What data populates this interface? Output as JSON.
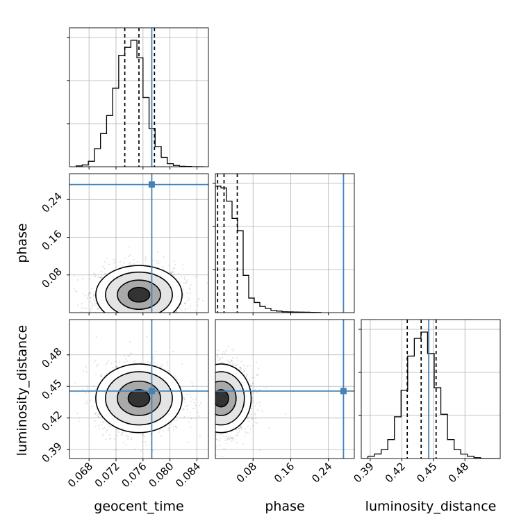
{
  "chart_data": {
    "type": "corner",
    "parameters": [
      "geocent_time",
      "phase",
      "luminosity_distance"
    ],
    "injection": {
      "geocent_time": 0.0773,
      "phase": 0.272,
      "luminosity_distance": 0.4456,
      "color": "#4682b4"
    },
    "axes": {
      "geocent_time": {
        "label": "geocent_time",
        "range": [
          0.0651,
          0.0857
        ],
        "ticks": [
          0.068,
          0.072,
          0.076,
          0.08,
          0.084
        ],
        "tick_labels": [
          "0.068",
          "0.072",
          "0.076",
          "0.080",
          "0.084"
        ]
      },
      "phase": {
        "label": "phase",
        "range": [
          0.0,
          0.295
        ],
        "ticks": [
          0.08,
          0.16,
          0.24
        ],
        "tick_labels": [
          "0.08",
          "0.16",
          "0.24"
        ]
      },
      "luminosity_distance": {
        "label": "luminosity_distance",
        "range": [
          0.3815,
          0.5135
        ],
        "ticks": [
          0.39,
          0.42,
          0.45,
          0.48
        ],
        "tick_labels": [
          "0.39",
          "0.42",
          "0.45",
          "0.48"
        ]
      }
    },
    "marginals": {
      "geocent_time": {
        "bin_edges": [
          0.0661,
          0.067,
          0.0679,
          0.0688,
          0.0697,
          0.0706,
          0.0715,
          0.0724,
          0.0733,
          0.0742,
          0.0751,
          0.076,
          0.0769,
          0.0778,
          0.0787,
          0.0796,
          0.0805,
          0.0814,
          0.0823,
          0.0832,
          0.0841,
          0.085
        ],
        "counts": [
          0.007,
          0.014,
          0.043,
          0.143,
          0.262,
          0.405,
          0.621,
          0.881,
          0.944,
          1.0,
          0.862,
          0.547,
          0.302,
          0.16,
          0.074,
          0.024,
          0.01,
          0.003,
          0.002,
          0.0,
          0.0
        ],
        "quantiles": [
          0.0733,
          0.0754,
          0.0777
        ]
      },
      "phase": {
        "bin_edges": [
          0.0,
          0.0118,
          0.0236,
          0.0354,
          0.0472,
          0.059,
          0.0708,
          0.0826,
          0.0944,
          0.1062,
          0.118,
          0.1298,
          0.1416,
          0.1534,
          0.1652,
          0.177,
          0.1888,
          0.2006,
          0.2124,
          0.2242
        ],
        "counts": [
          1.0,
          0.986,
          0.882,
          0.745,
          0.648,
          0.295,
          0.115,
          0.08,
          0.049,
          0.033,
          0.017,
          0.012,
          0.007,
          0.006,
          0.005,
          0.004,
          0.003,
          0.002,
          0.001
        ],
        "quantiles": [
          0.0048,
          0.0184,
          0.0465
        ]
      },
      "luminosity_distance": {
        "bin_edges": [
          0.3815,
          0.3878,
          0.3941,
          0.4004,
          0.4067,
          0.413,
          0.4193,
          0.4256,
          0.4319,
          0.4382,
          0.4445,
          0.4508,
          0.4571,
          0.4634,
          0.4697,
          0.476,
          0.4823,
          0.4886,
          0.4949,
          0.5012,
          0.5075,
          0.5135
        ],
        "counts": [
          0.0,
          0.018,
          0.036,
          0.07,
          0.15,
          0.33,
          0.54,
          0.81,
          0.95,
          1.0,
          0.83,
          0.56,
          0.35,
          0.15,
          0.07,
          0.035,
          0.018,
          0.007,
          0.0,
          0.0,
          0.0
        ],
        "quantiles": [
          0.4252,
          0.4384,
          0.4526
        ]
      }
    },
    "joint": {
      "phase|geocent_time": {
        "mean": [
          0.0754,
          0.038
        ],
        "sd": [
          0.0032,
          0.031
        ],
        "clip_min_y": 0.0
      },
      "luminosity_distance|geocent_time": {
        "mean": [
          0.0754,
          0.4387
        ],
        "sd": [
          0.0032,
          0.0163
        ],
        "clip_min_y": null
      },
      "luminosity_distance|phase": {
        "mean": [
          0.012,
          0.4387
        ],
        "sd": [
          0.032,
          0.0163
        ],
        "clip_min_y": null,
        "clip_min_x": 0.0
      }
    },
    "grid": true,
    "hist_color": "#000000"
  }
}
